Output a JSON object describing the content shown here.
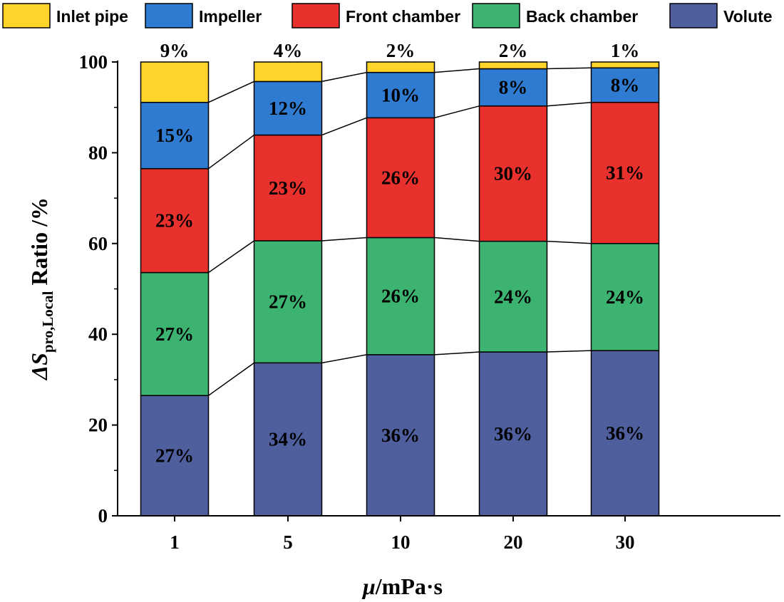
{
  "chart_data": {
    "type": "bar",
    "stacked": true,
    "categories": [
      "1",
      "5",
      "10",
      "20",
      "30"
    ],
    "series": [
      {
        "name": "Volute",
        "color": "#4f5f9e",
        "values": [
          26.5,
          33.7,
          35.5,
          36.1,
          36.4
        ],
        "labels": [
          "27%",
          "34%",
          "36%",
          "36%",
          "36%"
        ]
      },
      {
        "name": "Back chamber",
        "color": "#3cb371",
        "values": [
          27.1,
          26.9,
          25.8,
          24.4,
          23.6
        ],
        "labels": [
          "27%",
          "27%",
          "26%",
          "24%",
          "24%"
        ]
      },
      {
        "name": "Front chamber",
        "color": "#e8302c",
        "values": [
          22.9,
          23.3,
          26.4,
          29.8,
          31.1
        ],
        "labels": [
          "23%",
          "23%",
          "26%",
          "30%",
          "31%"
        ]
      },
      {
        "name": "Impeller",
        "color": "#2e7bd1",
        "values": [
          14.6,
          11.8,
          10.0,
          8.2,
          7.6
        ],
        "labels": [
          "15%",
          "12%",
          "10%",
          "8%",
          "8%"
        ]
      },
      {
        "name": "Inlet pipe",
        "color": "#ffd42a",
        "values": [
          8.9,
          4.3,
          2.3,
          1.5,
          1.3
        ],
        "labels": [
          "9%",
          "4%",
          "2%",
          "2%",
          "1%"
        ]
      }
    ],
    "xlabel": "μ/mPa·s",
    "ylabel": {
      "prefix": "ΔS",
      "subscript": "pro,Local",
      "suffix": " Ratio /%"
    },
    "ylim": [
      0,
      100
    ],
    "yticks": [
      0,
      20,
      40,
      60,
      80,
      100
    ],
    "grid": false,
    "connector_lines": true,
    "legend": {
      "placement": "top",
      "order": [
        "Inlet pipe",
        "Impeller",
        "Front chamber",
        "Back chamber",
        "Volute"
      ]
    }
  }
}
